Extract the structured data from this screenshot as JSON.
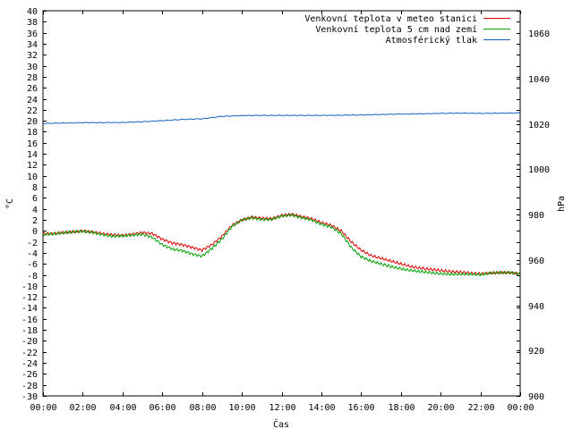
{
  "chart_data": {
    "type": "line",
    "xlabel": "Čas",
    "ylabel": "°C",
    "y2label": "hPa",
    "x_ticks": [
      "00:00",
      "02:00",
      "04:00",
      "06:00",
      "08:00",
      "10:00",
      "12:00",
      "14:00",
      "16:00",
      "18:00",
      "20:00",
      "22:00",
      "00:00"
    ],
    "x_unit": "hours",
    "xlim": [
      0,
      24
    ],
    "ylim": [
      -30,
      40
    ],
    "y_tick_step": 2,
    "y2lim": [
      900,
      1070
    ],
    "y2_ticks": [
      900,
      920,
      940,
      960,
      980,
      1000,
      1020,
      1040,
      1060
    ],
    "grid": false,
    "legend_position": "top-right",
    "series": [
      {
        "name": "Venkovní teplota v meteo stanici",
        "color": "#e00000",
        "axis": "left",
        "x": [
          0,
          0.5,
          1,
          1.5,
          2,
          2.5,
          3,
          3.5,
          4,
          4.5,
          5,
          5.5,
          6,
          6.5,
          7,
          7.5,
          8,
          8.5,
          9,
          9.5,
          10,
          10.5,
          11,
          11.5,
          12,
          12.5,
          13,
          13.5,
          14,
          14.5,
          15,
          15.5,
          16,
          16.5,
          17,
          17.5,
          18,
          18.5,
          19,
          19.5,
          20,
          20.5,
          21,
          21.5,
          22,
          22.5,
          23,
          23.5,
          24
        ],
        "values": [
          -0.5,
          -0.5,
          -0.3,
          -0.2,
          0,
          -0.2,
          -0.5,
          -0.7,
          -0.8,
          -0.6,
          -0.3,
          -0.5,
          -1.5,
          -2.2,
          -2.5,
          -3,
          -3.5,
          -2.5,
          -1,
          1,
          2,
          2.5,
          2.3,
          2.2,
          2.8,
          3,
          2.6,
          2.2,
          1.5,
          1,
          0,
          -2,
          -3.5,
          -4.5,
          -5,
          -5.5,
          -6,
          -6.5,
          -6.8,
          -7,
          -7.2,
          -7.4,
          -7.5,
          -7.7,
          -7.8,
          -7.7,
          -7.6,
          -7.6,
          -7.8
        ]
      },
      {
        "name": "Venkovní teplota 5 cm nad zemí",
        "color": "#00a000",
        "axis": "left",
        "x": [
          0,
          0.5,
          1,
          1.5,
          2,
          2.5,
          3,
          3.5,
          4,
          4.5,
          5,
          5.5,
          6,
          6.5,
          7,
          7.5,
          8,
          8.5,
          9,
          9.5,
          10,
          10.5,
          11,
          11.5,
          12,
          12.5,
          13,
          13.5,
          14,
          14.5,
          15,
          15.5,
          16,
          16.5,
          17,
          17.5,
          18,
          18.5,
          19,
          19.5,
          20,
          20.5,
          21,
          21.5,
          22,
          22.5,
          23,
          23.5,
          24
        ],
        "values": [
          -0.7,
          -0.6,
          -0.4,
          -0.2,
          -0.1,
          -0.3,
          -0.7,
          -1,
          -0.9,
          -0.8,
          -0.6,
          -1.2,
          -2.5,
          -3.3,
          -3.6,
          -4.2,
          -4.6,
          -3.2,
          -1.5,
          0.8,
          2,
          2.4,
          2.1,
          2.1,
          2.7,
          2.9,
          2.4,
          2,
          1.2,
          0.7,
          -0.5,
          -3,
          -4.7,
          -5.5,
          -6,
          -6.5,
          -6.9,
          -7.2,
          -7.4,
          -7.6,
          -7.8,
          -7.9,
          -7.9,
          -7.9,
          -8,
          -7.7,
          -7.6,
          -7.6,
          -7.9
        ]
      },
      {
        "name": "Atmosférický tlak",
        "color": "#1060c0",
        "axis": "right",
        "x": [
          0,
          1,
          2,
          3,
          4,
          5,
          6,
          7,
          8,
          9,
          10,
          11,
          12,
          13,
          14,
          15,
          16,
          17,
          18,
          19,
          20,
          21,
          22,
          23,
          24
        ],
        "values": [
          1020.3,
          1020.4,
          1020.6,
          1020.6,
          1020.7,
          1021,
          1021.5,
          1022,
          1022.3,
          1023.4,
          1023.7,
          1023.8,
          1023.8,
          1023.8,
          1023.8,
          1023.9,
          1024,
          1024.2,
          1024.4,
          1024.5,
          1024.7,
          1024.8,
          1024.7,
          1024.8,
          1024.9
        ]
      }
    ]
  }
}
